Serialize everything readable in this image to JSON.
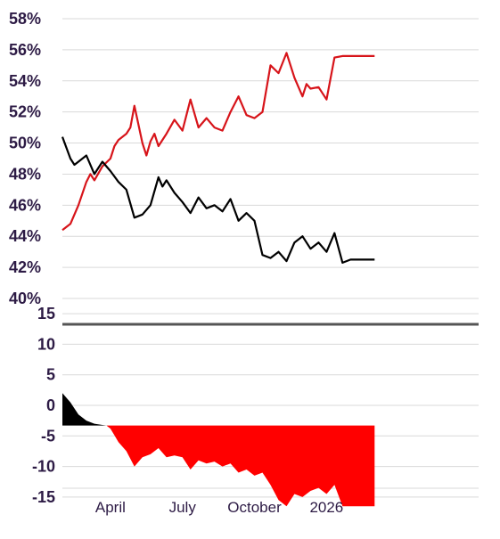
{
  "chart_data": [
    {
      "type": "line",
      "title": "",
      "xlabel": "",
      "ylabel": "",
      "x_ticks": [
        "April",
        "July",
        "October",
        "2026"
      ],
      "y_ticks": [
        "58%",
        "56%",
        "54%",
        "52%",
        "50%",
        "48%",
        "46%",
        "44%",
        "42%",
        "40%"
      ],
      "ylim": [
        39,
        58
      ],
      "grid": true,
      "x_unit": "weeks",
      "xlim": [
        0,
        52
      ],
      "x_tick_positions": [
        6,
        15,
        24,
        33
      ],
      "series": [
        {
          "color": "#d7141a",
          "x": [
            0,
            1,
            2,
            3,
            3.5,
            4,
            5,
            6,
            6.5,
            7,
            8,
            8.5,
            9,
            10,
            10.5,
            11,
            11.5,
            12,
            13,
            14,
            15,
            16,
            17,
            18,
            19,
            20,
            21,
            22,
            23,
            24,
            25,
            26,
            27,
            28,
            29,
            30,
            30.5,
            31,
            32,
            33,
            34,
            35,
            36,
            37,
            38,
            38.5,
            39
          ],
          "values": [
            44.4,
            44.8,
            46.0,
            47.5,
            48.0,
            47.6,
            48.5,
            49.0,
            49.8,
            50.2,
            50.6,
            51.0,
            52.4,
            50.0,
            49.2,
            50.1,
            50.6,
            49.8,
            50.6,
            51.5,
            50.8,
            52.8,
            51.0,
            51.6,
            51.0,
            50.8,
            52.0,
            53.0,
            51.8,
            51.6,
            52.0,
            55.0,
            54.5,
            55.8,
            54.2,
            53.0,
            53.8,
            53.5,
            53.6,
            52.8,
            55.5,
            55.6,
            55.6,
            55.6,
            55.6,
            55.6,
            55.6
          ]
        },
        {
          "color": "#000000",
          "x": [
            0,
            1,
            1.5,
            2,
            3,
            4,
            5,
            6,
            7,
            8,
            9,
            10,
            11,
            12,
            12.5,
            13,
            14,
            15,
            16,
            17,
            18,
            19,
            20,
            21,
            22,
            23,
            24,
            25,
            26,
            27,
            28,
            29,
            30,
            31,
            32,
            33,
            34,
            35,
            36,
            37,
            38,
            38.5,
            39
          ],
          "values": [
            50.4,
            49.0,
            48.6,
            48.8,
            49.2,
            48.0,
            48.8,
            48.2,
            47.5,
            47.0,
            45.2,
            45.4,
            46.0,
            47.8,
            47.2,
            47.6,
            46.8,
            46.2,
            45.5,
            46.5,
            45.8,
            46.0,
            45.6,
            46.4,
            45.0,
            45.5,
            45.0,
            42.8,
            42.6,
            43.0,
            42.4,
            43.6,
            44.0,
            43.2,
            43.6,
            43.0,
            44.2,
            42.3,
            42.5,
            42.5,
            42.5,
            42.5,
            42.5
          ]
        }
      ]
    },
    {
      "type": "area",
      "title": "",
      "xlabel": "",
      "ylabel": "",
      "y_ticks": [
        "15",
        "10",
        "5",
        "0",
        "-5",
        "-10",
        "-15"
      ],
      "ylim": [
        -19,
        17
      ],
      "grid": true,
      "xlim": [
        0,
        52
      ],
      "baseline": -3.3,
      "series": [
        {
          "colors": {
            "positive": "#000000",
            "negative": "#ff0000"
          },
          "x": [
            0,
            1,
            2,
            3,
            4,
            5,
            5.5,
            6,
            7,
            8,
            9,
            10,
            11,
            12,
            13,
            14,
            15,
            16,
            17,
            18,
            19,
            20,
            21,
            22,
            23,
            24,
            25,
            26,
            27,
            28,
            29,
            30,
            31,
            32,
            33,
            34,
            35,
            36,
            37,
            38,
            39
          ],
          "values": [
            2.0,
            0.5,
            -1.5,
            -2.5,
            -3.0,
            -3.2,
            -3.3,
            -3.8,
            -6.0,
            -7.5,
            -10.0,
            -8.5,
            -8.0,
            -7.0,
            -8.5,
            -8.2,
            -8.5,
            -10.5,
            -9.0,
            -9.5,
            -9.2,
            -10.0,
            -9.5,
            -11.0,
            -10.5,
            -11.5,
            -11.0,
            -13.0,
            -15.5,
            -16.5,
            -14.5,
            -15.0,
            -14.0,
            -13.5,
            -14.5,
            -13.0,
            -16.5,
            -16.5,
            -16.5,
            -16.5,
            -16.5
          ]
        }
      ]
    }
  ]
}
